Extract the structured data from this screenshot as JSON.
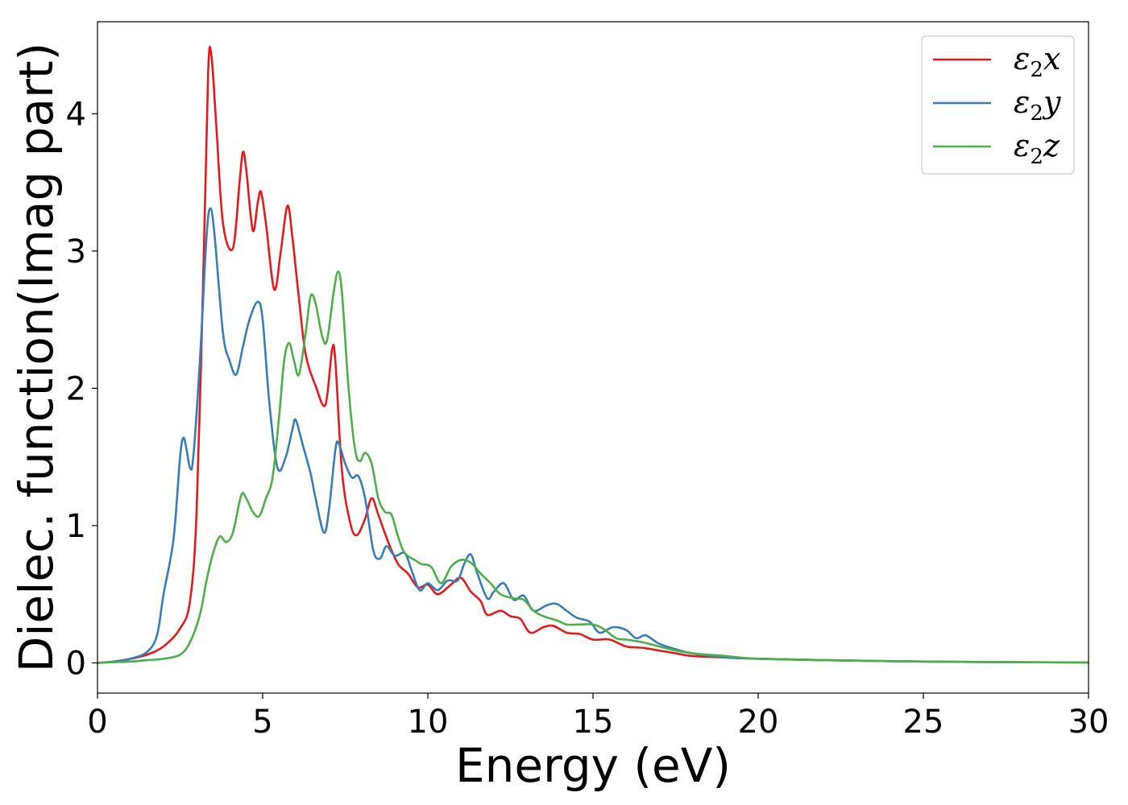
{
  "chart_data": {
    "type": "line",
    "title": "",
    "xlabel": "Energy (eV)",
    "ylabel": "Dielec. function(Imag part)",
    "xlim": [
      0,
      30
    ],
    "ylim": [
      -0.22,
      4.67
    ],
    "xticks": [
      0,
      5,
      10,
      15,
      20,
      25,
      30
    ],
    "yticks": [
      0,
      1,
      2,
      3,
      4
    ],
    "grid": false,
    "legend_position": "top-right",
    "series": [
      {
        "name": "ε2x",
        "legend_base": "ε",
        "legend_sub": "2",
        "legend_suffix": "x",
        "color": "#e41a1c",
        "points": [
          [
            0,
            0
          ],
          [
            0.5,
            0.01
          ],
          [
            1.0,
            0.03
          ],
          [
            1.5,
            0.06
          ],
          [
            2.0,
            0.12
          ],
          [
            2.5,
            0.25
          ],
          [
            2.8,
            0.45
          ],
          [
            3.0,
            1.1
          ],
          [
            3.2,
            2.8
          ],
          [
            3.35,
            4.3
          ],
          [
            3.45,
            4.42
          ],
          [
            3.6,
            3.9
          ],
          [
            3.8,
            3.2
          ],
          [
            4.1,
            3.02
          ],
          [
            4.3,
            3.5
          ],
          [
            4.4,
            3.72
          ],
          [
            4.5,
            3.6
          ],
          [
            4.7,
            3.15
          ],
          [
            4.85,
            3.35
          ],
          [
            4.95,
            3.43
          ],
          [
            5.1,
            3.2
          ],
          [
            5.35,
            2.72
          ],
          [
            5.55,
            3.0
          ],
          [
            5.75,
            3.33
          ],
          [
            5.9,
            3.1
          ],
          [
            6.1,
            2.65
          ],
          [
            6.3,
            2.25
          ],
          [
            6.6,
            2.02
          ],
          [
            6.9,
            1.88
          ],
          [
            7.1,
            2.28
          ],
          [
            7.2,
            2.2
          ],
          [
            7.4,
            1.4
          ],
          [
            7.65,
            1.02
          ],
          [
            7.85,
            0.93
          ],
          [
            8.1,
            1.05
          ],
          [
            8.3,
            1.2
          ],
          [
            8.5,
            1.08
          ],
          [
            8.8,
            0.88
          ],
          [
            9.1,
            0.72
          ],
          [
            9.4,
            0.65
          ],
          [
            9.7,
            0.55
          ],
          [
            10.0,
            0.57
          ],
          [
            10.3,
            0.5
          ],
          [
            10.7,
            0.57
          ],
          [
            11.0,
            0.62
          ],
          [
            11.3,
            0.52
          ],
          [
            11.6,
            0.45
          ],
          [
            11.8,
            0.35
          ],
          [
            12.2,
            0.38
          ],
          [
            12.5,
            0.34
          ],
          [
            12.8,
            0.32
          ],
          [
            13.1,
            0.22
          ],
          [
            13.5,
            0.26
          ],
          [
            13.8,
            0.27
          ],
          [
            14.2,
            0.22
          ],
          [
            14.6,
            0.21
          ],
          [
            15.0,
            0.17
          ],
          [
            15.5,
            0.17
          ],
          [
            16.0,
            0.12
          ],
          [
            16.5,
            0.11
          ],
          [
            17.0,
            0.09
          ],
          [
            17.5,
            0.07
          ],
          [
            18.0,
            0.05
          ],
          [
            19.0,
            0.04
          ],
          [
            20.0,
            0.03
          ],
          [
            22.0,
            0.02
          ],
          [
            25.0,
            0.01
          ],
          [
            28.0,
            0.005
          ],
          [
            30.0,
            0.003
          ]
        ]
      },
      {
        "name": "ε2y",
        "legend_base": "ε",
        "legend_sub": "2",
        "legend_suffix": "y",
        "color": "#377eb8",
        "points": [
          [
            0,
            0
          ],
          [
            0.5,
            0.01
          ],
          [
            1.0,
            0.03
          ],
          [
            1.5,
            0.08
          ],
          [
            1.8,
            0.2
          ],
          [
            2.0,
            0.5
          ],
          [
            2.3,
            0.9
          ],
          [
            2.5,
            1.5
          ],
          [
            2.6,
            1.64
          ],
          [
            2.7,
            1.55
          ],
          [
            2.8,
            1.42
          ],
          [
            2.9,
            1.5
          ],
          [
            3.1,
            2.2
          ],
          [
            3.3,
            3.1
          ],
          [
            3.42,
            3.31
          ],
          [
            3.55,
            3.1
          ],
          [
            3.8,
            2.4
          ],
          [
            4.0,
            2.2
          ],
          [
            4.2,
            2.1
          ],
          [
            4.4,
            2.3
          ],
          [
            4.6,
            2.5
          ],
          [
            4.85,
            2.63
          ],
          [
            5.0,
            2.5
          ],
          [
            5.2,
            1.9
          ],
          [
            5.45,
            1.42
          ],
          [
            5.7,
            1.5
          ],
          [
            5.9,
            1.7
          ],
          [
            6.0,
            1.77
          ],
          [
            6.2,
            1.6
          ],
          [
            6.45,
            1.38
          ],
          [
            6.6,
            1.2
          ],
          [
            6.85,
            0.95
          ],
          [
            7.0,
            1.1
          ],
          [
            7.2,
            1.55
          ],
          [
            7.3,
            1.6
          ],
          [
            7.5,
            1.45
          ],
          [
            7.7,
            1.35
          ],
          [
            7.9,
            1.36
          ],
          [
            8.1,
            1.2
          ],
          [
            8.35,
            0.82
          ],
          [
            8.55,
            0.76
          ],
          [
            8.75,
            0.85
          ],
          [
            9.0,
            0.78
          ],
          [
            9.3,
            0.8
          ],
          [
            9.5,
            0.68
          ],
          [
            9.75,
            0.53
          ],
          [
            10.0,
            0.58
          ],
          [
            10.3,
            0.53
          ],
          [
            10.6,
            0.6
          ],
          [
            10.9,
            0.6
          ],
          [
            11.1,
            0.72
          ],
          [
            11.3,
            0.79
          ],
          [
            11.5,
            0.65
          ],
          [
            11.8,
            0.47
          ],
          [
            12.0,
            0.52
          ],
          [
            12.3,
            0.58
          ],
          [
            12.6,
            0.46
          ],
          [
            12.9,
            0.49
          ],
          [
            13.2,
            0.38
          ],
          [
            13.6,
            0.42
          ],
          [
            13.9,
            0.43
          ],
          [
            14.2,
            0.38
          ],
          [
            14.5,
            0.33
          ],
          [
            14.9,
            0.3
          ],
          [
            15.2,
            0.22
          ],
          [
            15.6,
            0.26
          ],
          [
            16.0,
            0.24
          ],
          [
            16.3,
            0.18
          ],
          [
            16.6,
            0.2
          ],
          [
            17.0,
            0.14
          ],
          [
            17.5,
            0.1
          ],
          [
            18.0,
            0.07
          ],
          [
            19.0,
            0.04
          ],
          [
            20.0,
            0.03
          ],
          [
            22.0,
            0.02
          ],
          [
            25.0,
            0.01
          ],
          [
            28.0,
            0.005
          ],
          [
            30.0,
            0.003
          ]
        ]
      },
      {
        "name": "ε2z",
        "legend_base": "ε",
        "legend_sub": "2",
        "legend_suffix": "z",
        "color": "#4daf4a",
        "points": [
          [
            0,
            0
          ],
          [
            0.5,
            0.005
          ],
          [
            1.0,
            0.01
          ],
          [
            1.5,
            0.02
          ],
          [
            2.0,
            0.03
          ],
          [
            2.5,
            0.06
          ],
          [
            2.8,
            0.15
          ],
          [
            3.1,
            0.35
          ],
          [
            3.3,
            0.6
          ],
          [
            3.5,
            0.8
          ],
          [
            3.7,
            0.92
          ],
          [
            3.9,
            0.88
          ],
          [
            4.1,
            0.95
          ],
          [
            4.35,
            1.22
          ],
          [
            4.5,
            1.2
          ],
          [
            4.7,
            1.1
          ],
          [
            4.9,
            1.07
          ],
          [
            5.1,
            1.2
          ],
          [
            5.3,
            1.35
          ],
          [
            5.5,
            1.8
          ],
          [
            5.65,
            2.2
          ],
          [
            5.8,
            2.33
          ],
          [
            5.95,
            2.2
          ],
          [
            6.1,
            2.1
          ],
          [
            6.3,
            2.4
          ],
          [
            6.45,
            2.67
          ],
          [
            6.6,
            2.62
          ],
          [
            6.8,
            2.38
          ],
          [
            6.95,
            2.35
          ],
          [
            7.15,
            2.7
          ],
          [
            7.28,
            2.85
          ],
          [
            7.4,
            2.7
          ],
          [
            7.6,
            2.0
          ],
          [
            7.8,
            1.55
          ],
          [
            7.95,
            1.47
          ],
          [
            8.1,
            1.53
          ],
          [
            8.3,
            1.45
          ],
          [
            8.5,
            1.2
          ],
          [
            8.7,
            1.1
          ],
          [
            8.9,
            1.08
          ],
          [
            9.1,
            0.92
          ],
          [
            9.3,
            0.8
          ],
          [
            9.6,
            0.75
          ],
          [
            9.8,
            0.72
          ],
          [
            10.1,
            0.7
          ],
          [
            10.4,
            0.58
          ],
          [
            10.7,
            0.7
          ],
          [
            11.0,
            0.75
          ],
          [
            11.3,
            0.73
          ],
          [
            11.6,
            0.65
          ],
          [
            11.9,
            0.58
          ],
          [
            12.2,
            0.5
          ],
          [
            12.6,
            0.47
          ],
          [
            12.9,
            0.46
          ],
          [
            13.2,
            0.38
          ],
          [
            13.5,
            0.34
          ],
          [
            13.9,
            0.31
          ],
          [
            14.2,
            0.28
          ],
          [
            14.6,
            0.28
          ],
          [
            15.0,
            0.28
          ],
          [
            15.3,
            0.25
          ],
          [
            15.7,
            0.18
          ],
          [
            16.0,
            0.17
          ],
          [
            16.5,
            0.15
          ],
          [
            17.0,
            0.12
          ],
          [
            17.5,
            0.09
          ],
          [
            18.0,
            0.07
          ],
          [
            19.0,
            0.05
          ],
          [
            20.0,
            0.03
          ],
          [
            22.0,
            0.02
          ],
          [
            25.0,
            0.01
          ],
          [
            28.0,
            0.005
          ],
          [
            30.0,
            0.003
          ]
        ]
      }
    ]
  }
}
